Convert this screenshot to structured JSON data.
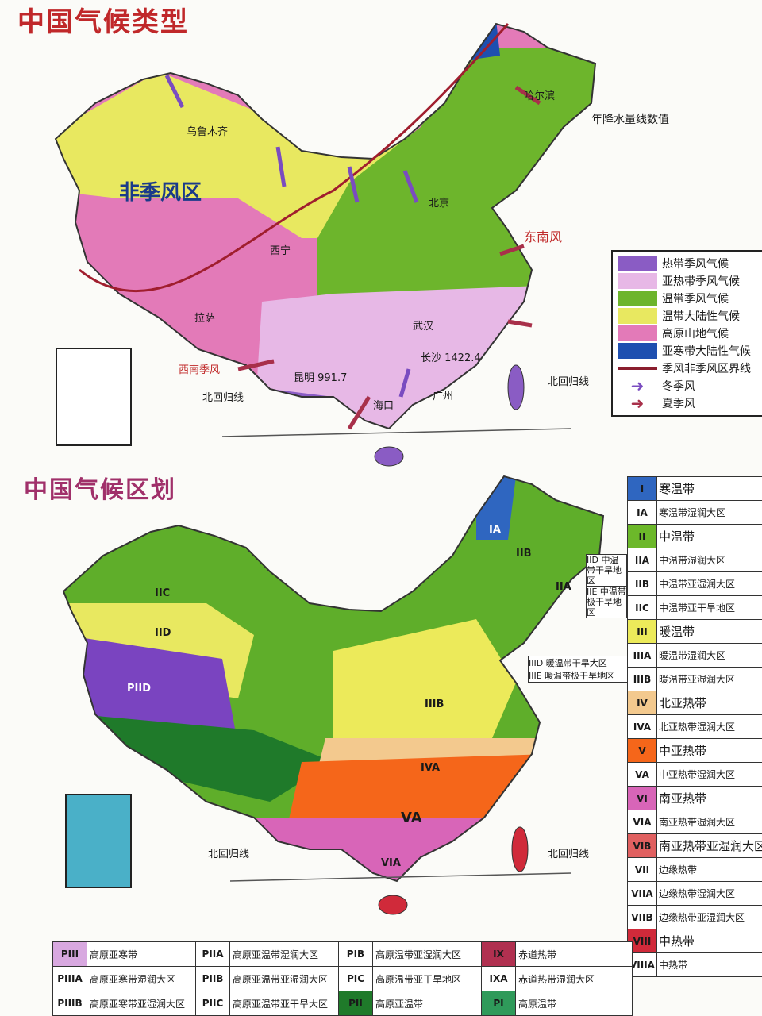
{
  "titles": {
    "climate_types": "中国气候类型",
    "climate_regions": "中国气候区划"
  },
  "map1_labels": {
    "non_monsoon": "非季风区",
    "southeast_wind": "东南风",
    "southwest_monsoon": "西南季风",
    "tropic_of_cancer": "北回归线",
    "tropic_of_cancer_east": "北回归线",
    "rainfall_note": "年降水量线数值",
    "urumqi": "乌鲁木齐",
    "xining": "西宁",
    "lhasa": "拉萨",
    "kunming": "昆明 991.7",
    "wuhan": "武汉",
    "changsha": "长沙 1422.4",
    "guangzhou": "广州",
    "haikou": "海口",
    "beijing": "北京",
    "harbin": "哈尔滨"
  },
  "map2_labels": {
    "tropic_of_cancer": "北回归线",
    "tropic_of_cancer_east": "北回归线",
    "IIC": "IIC",
    "IIIB": "IIIB",
    "VA": "VA",
    "IVA": "IVA",
    "IID": "IID",
    "IA": "IA",
    "IIA": "IIA",
    "IIB": "IIB",
    "VIA": "VIA",
    "PIID": "PIID"
  },
  "map2_side_notes": [
    "IID 中温带干旱地区",
    "IIE 中温带极干旱地区",
    "IIID 暖温带干旱大区",
    "IIIE 暖温带极干旱地区"
  ],
  "legend_types": [
    {
      "label": "热带季风气候",
      "color": "#8a5cc4",
      "kind": "swatch"
    },
    {
      "label": "亚热带季风气候",
      "color": "#e7b8e6",
      "kind": "swatch"
    },
    {
      "label": "温带季风气候",
      "color": "#6db52c",
      "kind": "swatch"
    },
    {
      "label": "温带大陆性气候",
      "color": "#e8e860",
      "kind": "swatch"
    },
    {
      "label": "高原山地气候",
      "color": "#e37ab8",
      "kind": "swatch"
    },
    {
      "label": "亚寒带大陆性气候",
      "color": "#1e4fb0",
      "kind": "swatch"
    },
    {
      "label": "季风非季风区界线",
      "color": "#8a1e2e",
      "kind": "line"
    },
    {
      "label": "冬季风",
      "color": "#7a4cc0",
      "kind": "arrow"
    },
    {
      "label": "夏季风",
      "color": "#a8304a",
      "kind": "arrow"
    }
  ],
  "legend_regions": [
    {
      "code": "I",
      "label": "寒温带",
      "color": "#2f66c0"
    },
    {
      "code": "IA",
      "label": "寒温带湿润大区",
      "color": ""
    },
    {
      "code": "II",
      "label": "中温带",
      "color": "#6cb82a"
    },
    {
      "code": "IIA",
      "label": "中温带湿润大区",
      "color": ""
    },
    {
      "code": "IIB",
      "label": "中温带亚湿润大区",
      "color": ""
    },
    {
      "code": "IIC",
      "label": "中温带亚干旱地区",
      "color": ""
    },
    {
      "code": "III",
      "label": "暖温带",
      "color": "#ecea5a"
    },
    {
      "code": "IIIA",
      "label": "暖温带湿润大区",
      "color": ""
    },
    {
      "code": "IIIB",
      "label": "暖温带亚湿润大区",
      "color": ""
    },
    {
      "code": "IV",
      "label": "北亚热带",
      "color": "#f3c98e"
    },
    {
      "code": "IVA",
      "label": "北亚热带湿润大区",
      "color": ""
    },
    {
      "code": "V",
      "label": "中亚热带",
      "color": "#f5661a"
    },
    {
      "code": "VA",
      "label": "中亚热带湿润大区",
      "color": ""
    },
    {
      "code": "VI",
      "label": "南亚热带",
      "color": "#d865b8"
    },
    {
      "code": "VIA",
      "label": "南亚热带湿润大区",
      "color": ""
    },
    {
      "code": "VIB",
      "label": "南亚热带亚湿润大区",
      "color": "#e06060"
    },
    {
      "code": "VII",
      "label": "边缘热带",
      "color": ""
    },
    {
      "code": "VIIA",
      "label": "边缘热带湿润大区",
      "color": ""
    },
    {
      "code": "VIIB",
      "label": "边缘热带亚湿润大区",
      "color": ""
    },
    {
      "code": "VIII",
      "label": "中热带",
      "color": "#d02a3a"
    },
    {
      "code": "VIIIA",
      "label": "中热带",
      "color": ""
    }
  ],
  "legend_plateau": [
    [
      {
        "code": "PIII",
        "label": "高原亚寒带",
        "color": "#d8a8e0"
      },
      {
        "code": "PIIA",
        "label": "高原亚温带湿润大区",
        "color": ""
      },
      {
        "code": "PIB",
        "label": "高原温带亚湿润大区",
        "color": ""
      },
      {
        "code": "IX",
        "label": "赤道热带",
        "color": "#b03050"
      }
    ],
    [
      {
        "code": "PIIIA",
        "label": "高原亚寒带湿润大区",
        "color": ""
      },
      {
        "code": "PIIB",
        "label": "高原亚温带亚湿润大区",
        "color": ""
      },
      {
        "code": "PIC",
        "label": "高原温带亚干旱地区",
        "color": ""
      },
      {
        "code": "IXA",
        "label": "赤道热带湿润大区",
        "color": ""
      }
    ],
    [
      {
        "code": "PIIIB",
        "label": "高原亚寒带亚湿润大区",
        "color": ""
      },
      {
        "code": "PIIC",
        "label": "高原亚温带亚干旱大区",
        "color": ""
      },
      {
        "code": "PII",
        "label": "高原亚温带",
        "color": "#1f7a2a"
      },
      {
        "code": "PI",
        "label": "高原温带",
        "color": "#2f9a5a"
      }
    ]
  ]
}
